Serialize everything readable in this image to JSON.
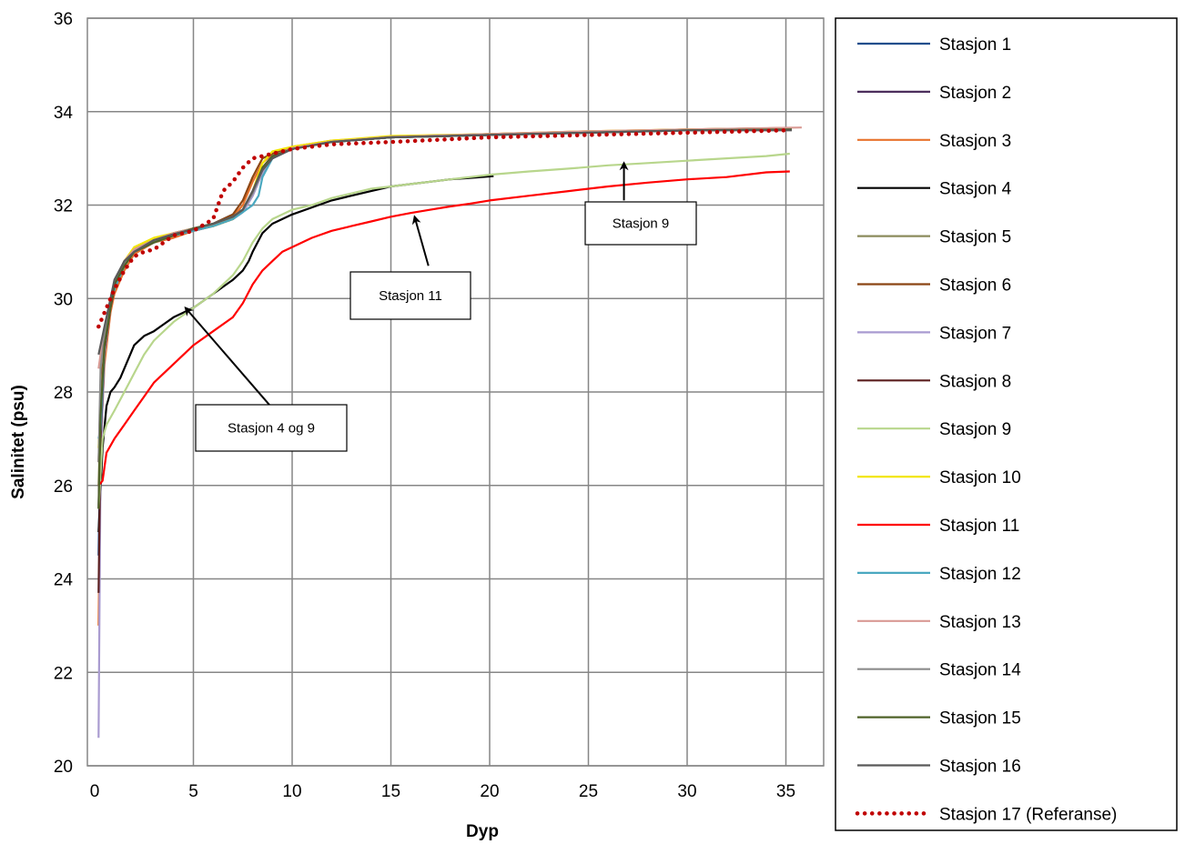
{
  "chart_data": {
    "type": "line",
    "title": "",
    "xlabel": "Dyp",
    "ylabel": "Salinitet (psu)",
    "xlim": [
      0,
      37
    ],
    "ylim": [
      20,
      36
    ],
    "xticks": [
      0,
      5,
      10,
      15,
      20,
      25,
      30,
      35
    ],
    "yticks": [
      20,
      22,
      24,
      26,
      28,
      30,
      32,
      34,
      36
    ],
    "grid": true,
    "legend_position": "right",
    "series": [
      {
        "name": "Stasjon 1",
        "color": "#1f4e8c",
        "style": "solid",
        "x": [
          0.2,
          0.3,
          0.5,
          0.8,
          1,
          1.5,
          2,
          3,
          4,
          5,
          6,
          7,
          7.5,
          8,
          8.5,
          9,
          10,
          12,
          15,
          20,
          25,
          30,
          35.3
        ],
        "y": [
          24.5,
          27.2,
          28.8,
          29.8,
          30.2,
          30.7,
          31.0,
          31.2,
          31.35,
          31.5,
          31.6,
          31.8,
          31.9,
          32.3,
          32.8,
          33.0,
          33.2,
          33.35,
          33.45,
          33.5,
          33.55,
          33.6,
          33.62
        ]
      },
      {
        "name": "Stasjon 2",
        "color": "#4b2e5c",
        "style": "solid",
        "x": [
          0.2,
          0.3,
          0.5,
          0.8,
          1,
          1.5,
          2,
          3,
          4,
          5,
          6,
          7,
          7.5,
          8,
          8.5,
          9,
          10,
          12,
          15,
          20,
          25,
          30,
          35.3
        ],
        "y": [
          25.5,
          27.8,
          29.0,
          29.9,
          30.3,
          30.8,
          31.05,
          31.25,
          31.4,
          31.5,
          31.55,
          31.7,
          31.85,
          32.2,
          32.7,
          33.0,
          33.2,
          33.35,
          33.45,
          33.5,
          33.55,
          33.6,
          33.62
        ]
      },
      {
        "name": "Stasjon 3",
        "color": "#e8732c",
        "style": "solid",
        "x": [
          0.2,
          0.3,
          0.5,
          0.8,
          1,
          1.5,
          2,
          3,
          4,
          5,
          6,
          7,
          7.5,
          8,
          8.5,
          9,
          10,
          12,
          15,
          20,
          25,
          30,
          35.3
        ],
        "y": [
          23.0,
          26.8,
          28.6,
          29.7,
          30.1,
          30.6,
          30.95,
          31.2,
          31.3,
          31.45,
          31.55,
          31.75,
          32.0,
          32.5,
          32.9,
          33.1,
          33.25,
          33.38,
          33.45,
          33.52,
          33.58,
          33.62,
          33.65
        ]
      },
      {
        "name": "Stasjon 4",
        "color": "#000000",
        "style": "solid",
        "x": [
          0.2,
          0.4,
          0.6,
          0.8,
          1,
          1.3,
          1.6,
          2,
          2.5,
          3,
          3.5,
          4,
          5,
          6,
          6.5,
          7,
          7.5,
          7.8,
          8,
          8.5,
          9,
          10,
          11,
          12,
          13,
          14,
          15,
          16,
          17,
          18,
          19,
          20.2
        ],
        "y": [
          25.0,
          26.8,
          27.7,
          28.0,
          28.1,
          28.3,
          28.6,
          29.0,
          29.2,
          29.3,
          29.45,
          29.6,
          29.8,
          30.1,
          30.25,
          30.4,
          30.6,
          30.8,
          31.0,
          31.4,
          31.6,
          31.8,
          31.95,
          32.1,
          32.2,
          32.3,
          32.4,
          32.45,
          32.5,
          32.55,
          32.58,
          32.62
        ]
      },
      {
        "name": "Stasjon 5",
        "color": "#8b8b5c",
        "style": "solid",
        "x": [
          0.2,
          0.3,
          0.5,
          0.8,
          1,
          1.5,
          2,
          3,
          4,
          5,
          6,
          7,
          7.5,
          8,
          8.5,
          9,
          10,
          12,
          15,
          20,
          25,
          30,
          35.3
        ],
        "y": [
          26.0,
          27.5,
          29.0,
          29.9,
          30.3,
          30.75,
          31.0,
          31.25,
          31.35,
          31.5,
          31.6,
          31.75,
          31.9,
          32.3,
          32.8,
          33.05,
          33.2,
          33.35,
          33.45,
          33.5,
          33.55,
          33.6,
          33.63
        ]
      },
      {
        "name": "Stasjon 6",
        "color": "#8b4513",
        "style": "solid",
        "x": [
          0.2,
          0.3,
          0.5,
          0.8,
          1,
          1.5,
          2,
          3,
          4,
          5,
          6,
          7,
          7.5,
          8,
          8.5,
          9,
          10,
          12,
          15,
          20,
          25,
          30,
          35.3
        ],
        "y": [
          26.5,
          28.0,
          29.2,
          30.0,
          30.35,
          30.8,
          31.05,
          31.25,
          31.4,
          31.5,
          31.6,
          31.8,
          32.1,
          32.6,
          33.0,
          33.1,
          33.22,
          33.36,
          33.45,
          33.52,
          33.57,
          33.62,
          33.65
        ]
      },
      {
        "name": "Stasjon 7",
        "color": "#a99bd0",
        "style": "solid",
        "x": [
          0.2,
          0.3,
          0.5,
          0.8,
          1,
          1.5,
          2,
          3,
          4,
          5,
          6,
          7,
          7.5,
          8,
          8.5,
          9,
          10,
          12,
          15,
          20,
          25,
          30,
          35.3
        ],
        "y": [
          20.6,
          26.5,
          28.8,
          29.8,
          30.2,
          30.7,
          31.0,
          31.25,
          31.35,
          31.48,
          31.58,
          31.7,
          31.85,
          32.2,
          32.7,
          33.0,
          33.2,
          33.35,
          33.45,
          33.5,
          33.55,
          33.6,
          33.62
        ]
      },
      {
        "name": "Stasjon 8",
        "color": "#5c1f1f",
        "style": "solid",
        "x": [
          0.2,
          0.3,
          0.5,
          0.8,
          1,
          1.5,
          2,
          3,
          4,
          5,
          6,
          7,
          7.5,
          8,
          8.5,
          9,
          10,
          12,
          15,
          20,
          25,
          30,
          35.3
        ],
        "y": [
          23.7,
          27.0,
          28.9,
          29.8,
          30.2,
          30.7,
          31.0,
          31.2,
          31.35,
          31.45,
          31.55,
          31.7,
          31.9,
          32.3,
          32.8,
          33.05,
          33.2,
          33.35,
          33.45,
          33.5,
          33.55,
          33.6,
          33.62
        ]
      },
      {
        "name": "Stasjon 9",
        "color": "#b8d68c",
        "style": "solid",
        "x": [
          0.2,
          0.4,
          0.6,
          1,
          1.5,
          2,
          2.5,
          3,
          4,
          5,
          6,
          6.5,
          7,
          7.5,
          8,
          8.5,
          9,
          10,
          11,
          12,
          13,
          14,
          15,
          16,
          17,
          18,
          19,
          20,
          22,
          24,
          26,
          28,
          30,
          32,
          34,
          35.2
        ],
        "y": [
          25.5,
          27.0,
          27.3,
          27.6,
          28.0,
          28.4,
          28.8,
          29.1,
          29.5,
          29.8,
          30.1,
          30.3,
          30.5,
          30.8,
          31.2,
          31.5,
          31.7,
          31.9,
          32.0,
          32.15,
          32.25,
          32.35,
          32.4,
          32.45,
          32.5,
          32.55,
          32.6,
          32.65,
          32.72,
          32.78,
          32.85,
          32.9,
          32.95,
          33.0,
          33.05,
          33.1
        ]
      },
      {
        "name": "Stasjon 10",
        "color": "#f2e600",
        "style": "solid",
        "x": [
          0.2,
          0.3,
          0.5,
          0.8,
          1,
          1.5,
          2,
          3,
          4,
          5,
          6,
          7,
          7.5,
          8,
          8.5,
          9,
          10,
          12,
          15,
          20,
          25,
          30,
          35.3
        ],
        "y": [
          26.8,
          27.5,
          29.0,
          29.9,
          30.3,
          30.8,
          31.1,
          31.3,
          31.4,
          31.5,
          31.55,
          31.7,
          31.9,
          32.3,
          32.9,
          33.15,
          33.25,
          33.38,
          33.48,
          33.52,
          33.58,
          33.62,
          33.64
        ]
      },
      {
        "name": "Stasjon 11",
        "color": "#ff0000",
        "style": "solid",
        "x": [
          0.2,
          0.4,
          0.6,
          1,
          1.5,
          2,
          2.5,
          3,
          4,
          5,
          6,
          7,
          7.5,
          8,
          8.5,
          9,
          9.5,
          10,
          11,
          12,
          13,
          14,
          15,
          16,
          17,
          18,
          19,
          20,
          22,
          24,
          26,
          28,
          30,
          32,
          34,
          35.2
        ],
        "y": [
          26.0,
          26.1,
          26.7,
          27.0,
          27.3,
          27.6,
          27.9,
          28.2,
          28.6,
          29.0,
          29.3,
          29.6,
          29.9,
          30.3,
          30.6,
          30.8,
          31.0,
          31.1,
          31.3,
          31.45,
          31.55,
          31.65,
          31.75,
          31.83,
          31.9,
          31.97,
          32.03,
          32.1,
          32.2,
          32.3,
          32.4,
          32.48,
          32.55,
          32.6,
          32.7,
          32.72
        ]
      },
      {
        "name": "Stasjon 12",
        "color": "#4aa8c0",
        "style": "solid",
        "x": [
          0.2,
          0.3,
          0.5,
          0.8,
          1,
          1.5,
          2,
          3,
          4,
          5,
          6,
          7,
          7.5,
          8,
          8.3,
          8.5,
          9,
          10,
          12,
          15,
          20,
          25,
          30,
          35.3
        ],
        "y": [
          27.0,
          27.2,
          29.0,
          29.9,
          30.2,
          30.7,
          31.0,
          31.2,
          31.35,
          31.45,
          31.55,
          31.7,
          31.85,
          32.0,
          32.2,
          32.6,
          33.0,
          33.2,
          33.35,
          33.45,
          33.5,
          33.55,
          33.6,
          33.62
        ]
      },
      {
        "name": "Stasjon 13",
        "color": "#d99a94",
        "style": "solid",
        "x": [
          0.2,
          0.3,
          0.5,
          0.8,
          1,
          1.5,
          2,
          3,
          4,
          5,
          6,
          7,
          7.5,
          8,
          8.5,
          9,
          10,
          12,
          15,
          20,
          25,
          30,
          35.8
        ],
        "y": [
          28.5,
          28.8,
          29.3,
          30.0,
          30.35,
          30.8,
          31.05,
          31.25,
          31.4,
          31.5,
          31.6,
          31.75,
          31.9,
          32.3,
          32.8,
          33.05,
          33.22,
          33.36,
          33.46,
          33.52,
          33.58,
          33.62,
          33.66
        ]
      },
      {
        "name": "Stasjon 14",
        "color": "#8c8c8c",
        "style": "solid",
        "x": [
          0.2,
          0.3,
          0.5,
          0.8,
          1,
          1.5,
          2,
          3,
          4,
          5,
          6,
          7,
          7.5,
          8,
          8.5,
          9,
          10,
          12,
          15,
          20,
          25,
          30,
          35.3
        ],
        "y": [
          26.5,
          28.5,
          29.2,
          30.0,
          30.3,
          30.75,
          31.0,
          31.25,
          31.38,
          31.5,
          31.6,
          31.75,
          31.9,
          32.25,
          32.75,
          33.0,
          33.2,
          33.35,
          33.45,
          33.5,
          33.55,
          33.6,
          33.62
        ]
      },
      {
        "name": "Stasjon 15",
        "color": "#4f6228",
        "style": "solid",
        "x": [
          0.2,
          0.3,
          0.5,
          0.8,
          1,
          1.5,
          2,
          3,
          4,
          5,
          6,
          7,
          7.5,
          8,
          8.5,
          9,
          10,
          12,
          15,
          20,
          25,
          30,
          35.3
        ],
        "y": [
          25.5,
          27.5,
          29.0,
          29.8,
          30.3,
          30.7,
          31.0,
          31.2,
          31.35,
          31.5,
          31.6,
          31.75,
          31.9,
          32.3,
          32.8,
          33.05,
          33.2,
          33.35,
          33.45,
          33.5,
          33.55,
          33.6,
          33.62
        ]
      },
      {
        "name": "Stasjon 16",
        "color": "#595959",
        "style": "solid",
        "x": [
          0.2,
          0.3,
          0.5,
          0.8,
          1,
          1.5,
          2,
          3,
          4,
          5,
          6,
          7,
          7.5,
          8,
          8.5,
          9,
          10,
          12,
          15,
          20,
          25,
          30,
          35.3
        ],
        "y": [
          28.8,
          29.0,
          29.4,
          30.0,
          30.4,
          30.8,
          31.0,
          31.25,
          31.38,
          31.48,
          31.6,
          31.75,
          31.9,
          32.3,
          32.75,
          33.0,
          33.2,
          33.35,
          33.45,
          33.5,
          33.55,
          33.6,
          33.6
        ]
      },
      {
        "name": "Stasjon 17 (Referanse)",
        "color": "#c00000",
        "style": "dotted",
        "x": [
          0.2,
          0.3,
          0.5,
          0.8,
          1,
          1.5,
          2,
          2.5,
          3,
          3.5,
          4,
          5,
          6,
          6.5,
          7,
          7.5,
          8,
          8.5,
          9,
          10,
          12,
          15,
          20,
          25,
          30,
          35
        ],
        "y": [
          29.4,
          29.5,
          29.7,
          30.0,
          30.2,
          30.6,
          30.9,
          31.0,
          31.05,
          31.2,
          31.35,
          31.45,
          31.7,
          32.3,
          32.5,
          32.8,
          33.0,
          33.05,
          33.1,
          33.2,
          33.3,
          33.35,
          33.45,
          33.5,
          33.55,
          33.6
        ]
      }
    ],
    "annotations": [
      {
        "text": "Stasjon 9",
        "arrow_to": [
          26.8,
          32.9
        ]
      },
      {
        "text": "Stasjon 11",
        "arrow_to": [
          16.2,
          31.75
        ]
      },
      {
        "text": "Stasjon 4 og 9",
        "arrow_to": [
          4.6,
          29.8
        ]
      }
    ]
  }
}
